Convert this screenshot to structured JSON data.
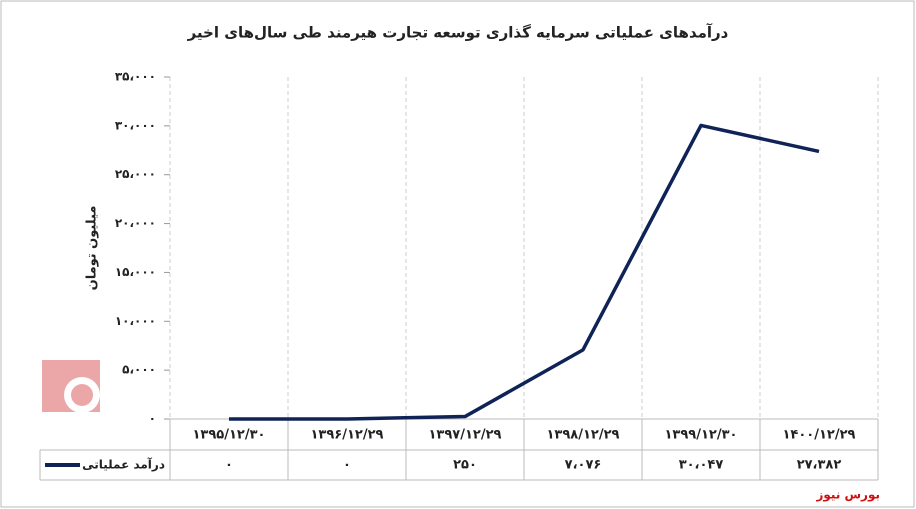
{
  "chart_data": {
    "type": "line",
    "title": "درآمدهای عملیاتی سرمایه گذاری توسعه تجارت هیرمند طی سال‌های اخیر",
    "y_label": "میلیون تومان",
    "categories": [
      "۱۳۹۵/۱۲/۳۰",
      "۱۳۹۶/۱۲/۲۹",
      "۱۳۹۷/۱۲/۲۹",
      "۱۳۹۸/۱۲/۲۹",
      "۱۳۹۹/۱۲/۳۰",
      "۱۴۰۰/۱۲/۲۹"
    ],
    "series": [
      {
        "name": "درآمد عملیاتی",
        "color": "#0f2356",
        "values": [
          0,
          0,
          250,
          7076,
          30047,
          27382
        ],
        "value_labels": [
          "۰",
          "۰",
          "۲۵۰",
          "۷،۰۷۶",
          "۳۰،۰۴۷",
          "۲۷،۳۸۲"
        ]
      }
    ],
    "ylim": [
      0,
      35000
    ],
    "yticks": [
      {
        "value": 0,
        "label": "۰"
      },
      {
        "value": 5000,
        "label": "۵،۰۰۰"
      },
      {
        "value": 10000,
        "label": "۱۰،۰۰۰"
      },
      {
        "value": 15000,
        "label": "۱۵،۰۰۰"
      },
      {
        "value": 20000,
        "label": "۲۰،۰۰۰"
      },
      {
        "value": 25000,
        "label": "۲۵،۰۰۰"
      },
      {
        "value": 30000,
        "label": "۳۰،۰۰۰"
      },
      {
        "value": 35000,
        "label": "۳۵،۰۰۰"
      }
    ],
    "grid": true,
    "source": "بورس نیوز"
  }
}
